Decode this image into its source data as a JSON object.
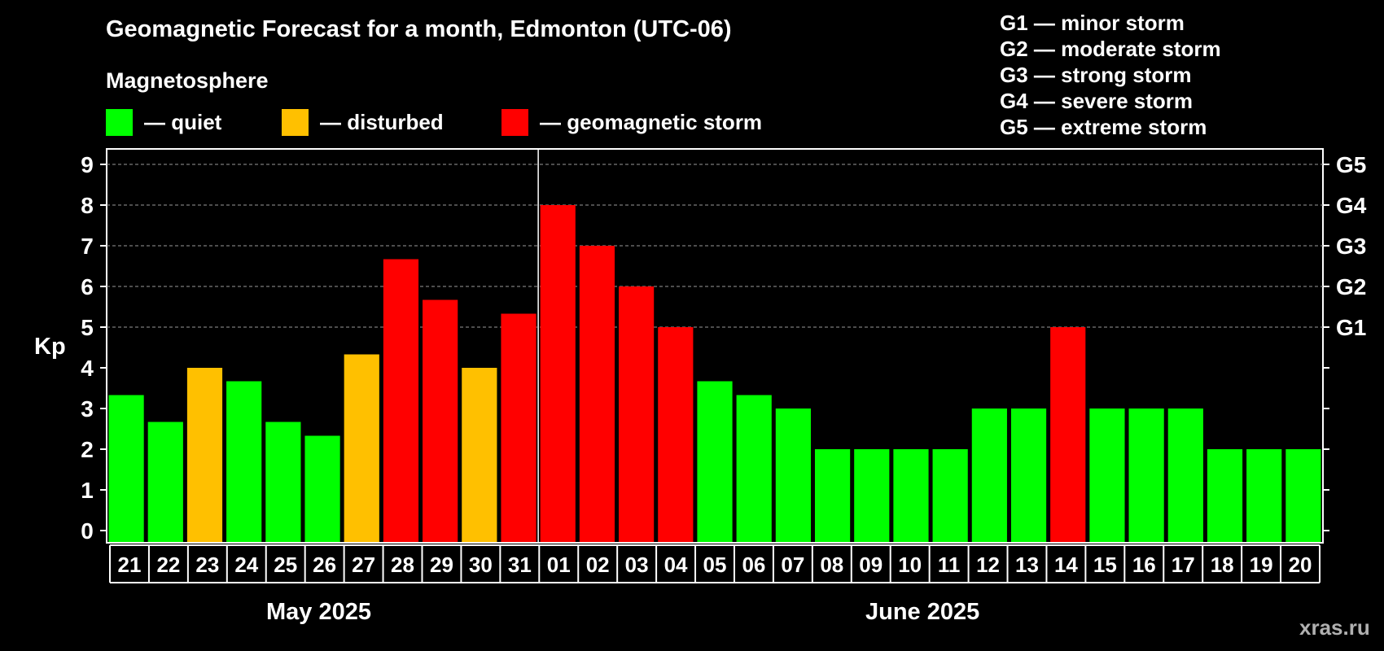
{
  "title": "Geomagnetic Forecast for a month, Edmonton (UTC-06)",
  "subtitle": "Magnetosphere",
  "legend": [
    {
      "label": "— quiet",
      "color": "#00ff00"
    },
    {
      "label": "— disturbed",
      "color": "#ffc000"
    },
    {
      "label": "— geomagnetic storm",
      "color": "#ff0000"
    }
  ],
  "storm_scale": [
    "G1 — minor storm",
    "G2 — moderate storm",
    "G3 — strong storm",
    "G4 — severe storm",
    "G5 — extreme storm"
  ],
  "watermark": "xras.ru",
  "chart_data": {
    "type": "bar",
    "ylabel": "Kp",
    "ylim": [
      0,
      9
    ],
    "yticks": [
      0,
      1,
      2,
      3,
      4,
      5,
      6,
      7,
      8,
      9
    ],
    "right_ticks": [
      {
        "value": 5,
        "label": "G1"
      },
      {
        "value": 6,
        "label": "G2"
      },
      {
        "value": 7,
        "label": "G3"
      },
      {
        "value": 8,
        "label": "G4"
      },
      {
        "value": 9,
        "label": "G5"
      }
    ],
    "grid": "horizontal dashed at 5–9",
    "months": [
      {
        "label": "May 2025",
        "start_index": 0,
        "end_index": 10
      },
      {
        "label": "June 2025",
        "start_index": 11,
        "end_index": 30
      }
    ],
    "month_divider_after_index": 10,
    "categories": [
      "21",
      "22",
      "23",
      "24",
      "25",
      "26",
      "27",
      "28",
      "29",
      "30",
      "31",
      "01",
      "02",
      "03",
      "04",
      "05",
      "06",
      "07",
      "08",
      "09",
      "10",
      "11",
      "12",
      "13",
      "14",
      "15",
      "16",
      "17",
      "18",
      "19",
      "20"
    ],
    "values": [
      3.33,
      2.67,
      4,
      3.67,
      2.67,
      2.33,
      4.33,
      6.67,
      5.67,
      4,
      5.33,
      8,
      7,
      6,
      5,
      3.67,
      3.33,
      3,
      2,
      2,
      2,
      2,
      3,
      3,
      5,
      3,
      3,
      3,
      2,
      2,
      2
    ],
    "status": [
      "quiet",
      "quiet",
      "disturbed",
      "quiet",
      "quiet",
      "quiet",
      "disturbed",
      "storm",
      "storm",
      "disturbed",
      "storm",
      "storm",
      "storm",
      "storm",
      "storm",
      "quiet",
      "quiet",
      "quiet",
      "quiet",
      "quiet",
      "quiet",
      "quiet",
      "quiet",
      "quiet",
      "storm",
      "quiet",
      "quiet",
      "quiet",
      "quiet",
      "quiet",
      "quiet"
    ],
    "colors": {
      "quiet": "#00ff00",
      "disturbed": "#ffc000",
      "storm": "#ff0000"
    }
  }
}
